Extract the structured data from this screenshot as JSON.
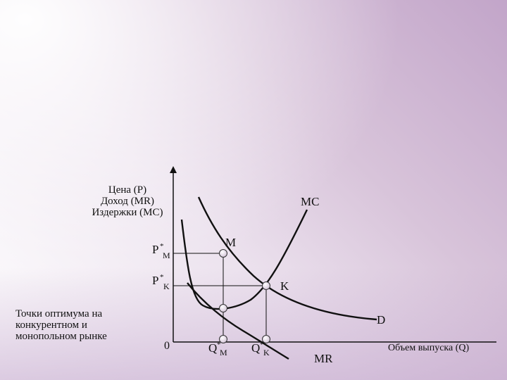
{
  "diagram": {
    "y_axis_title": [
      "Цена (P)",
      "Доход (MR)",
      "Издержки (MC)"
    ],
    "x_axis_title": "Объем выпуска (Q)",
    "origin": "0",
    "caption": [
      "Точки оптимума на",
      "конкурентном и",
      "монопольном рынке"
    ],
    "curves": {
      "mc": "MC",
      "d": "D",
      "mr": "MR"
    },
    "points": {
      "m": "M",
      "k": "K"
    },
    "y_ticks": {
      "pm_main": "P",
      "pm_sup": "*",
      "pm_sub": "M",
      "pk_main": "P",
      "pk_sup": "*",
      "pk_sub": "K"
    },
    "x_ticks": {
      "qm_main": "Q",
      "qm_sup": "*",
      "qm_sub": "M",
      "qk_main": "Q",
      "qk_sup": "*",
      "qk_sub": "K"
    }
  }
}
